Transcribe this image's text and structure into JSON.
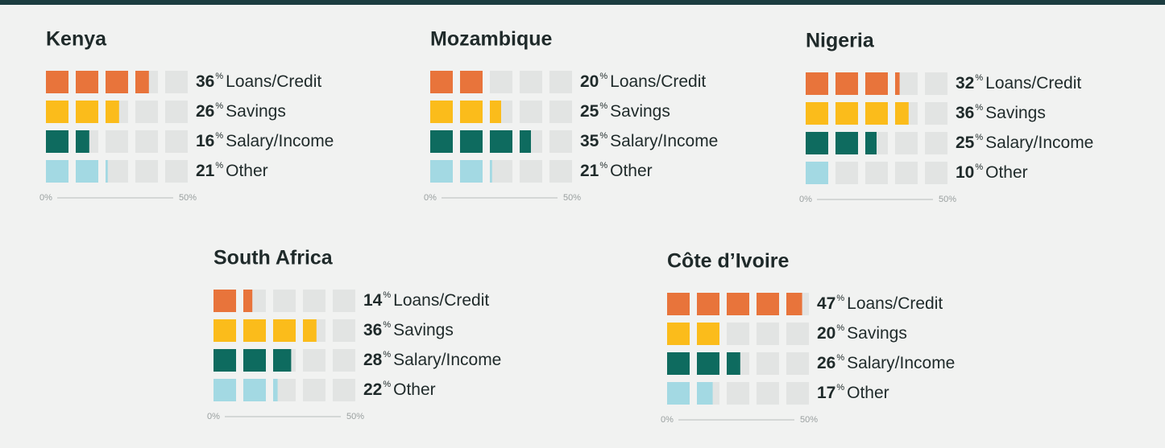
{
  "chart_data": [
    {
      "type": "bar",
      "title": "Kenya",
      "categories": [
        "Loans/Credit",
        "Savings",
        "Salary/Income",
        "Other"
      ],
      "values": [
        36,
        26,
        16,
        21
      ],
      "unit": "%",
      "colors": [
        "#e8743b",
        "#fbbc1b",
        "#0e6b5f",
        "#a3d9e3"
      ],
      "xlim": [
        0,
        50
      ],
      "xticks": [
        {
          "value": 0,
          "label": "0%"
        },
        {
          "value": 50,
          "label": "50%"
        }
      ]
    },
    {
      "type": "bar",
      "title": "Mozambique",
      "categories": [
        "Loans/Credit",
        "Savings",
        "Salary/Income",
        "Other"
      ],
      "values": [
        20,
        25,
        35,
        21
      ],
      "unit": "%",
      "colors": [
        "#e8743b",
        "#fbbc1b",
        "#0e6b5f",
        "#a3d9e3"
      ],
      "xlim": [
        0,
        50
      ],
      "xticks": [
        {
          "value": 0,
          "label": "0%"
        },
        {
          "value": 50,
          "label": "50%"
        }
      ]
    },
    {
      "type": "bar",
      "title": "Nigeria",
      "categories": [
        "Loans/Credit",
        "Savings",
        "Salary/Income",
        "Other"
      ],
      "values": [
        32,
        36,
        25,
        10
      ],
      "unit": "%",
      "colors": [
        "#e8743b",
        "#fbbc1b",
        "#0e6b5f",
        "#a3d9e3"
      ],
      "xlim": [
        0,
        50
      ],
      "xticks": [
        {
          "value": 0,
          "label": "0%"
        },
        {
          "value": 50,
          "label": "50%"
        }
      ]
    },
    {
      "type": "bar",
      "title": "South Africa",
      "categories": [
        "Loans/Credit",
        "Savings",
        "Salary/Income",
        "Other"
      ],
      "values": [
        14,
        36,
        28,
        22
      ],
      "unit": "%",
      "colors": [
        "#e8743b",
        "#fbbc1b",
        "#0e6b5f",
        "#a3d9e3"
      ],
      "xlim": [
        0,
        50
      ],
      "xticks": [
        {
          "value": 0,
          "label": "0%"
        },
        {
          "value": 50,
          "label": "50%"
        }
      ]
    },
    {
      "type": "bar",
      "title": "Côte d’Ivoire",
      "categories": [
        "Loans/Credit",
        "Savings",
        "Salary/Income",
        "Other"
      ],
      "values": [
        47,
        20,
        26,
        17
      ],
      "unit": "%",
      "colors": [
        "#e8743b",
        "#fbbc1b",
        "#0e6b5f",
        "#a3d9e3"
      ],
      "xlim": [
        0,
        50
      ],
      "xticks": [
        {
          "value": 0,
          "label": "0%"
        },
        {
          "value": 50,
          "label": "50%"
        }
      ]
    }
  ]
}
